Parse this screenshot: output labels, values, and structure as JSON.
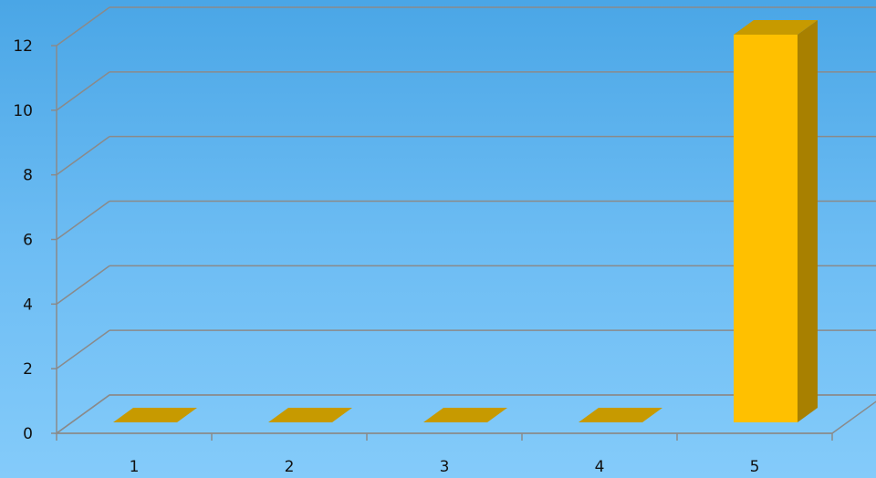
{
  "chart_data": {
    "type": "bar",
    "style": "3d-column",
    "categories": [
      "1",
      "2",
      "3",
      "4",
      "5"
    ],
    "values": [
      0,
      0,
      0,
      0,
      12
    ],
    "ylim": [
      0,
      12
    ],
    "yticks": [
      "0",
      "2",
      "4",
      "6",
      "8",
      "10",
      "12"
    ],
    "ytick_values": [
      0,
      2,
      4,
      6,
      8,
      10,
      12
    ],
    "grid": true,
    "legend": "none",
    "colors": {
      "bar_front": "#ffc000",
      "bar_top": "#c79a00",
      "bar_side": "#a88000",
      "gridline": "#8a8a8a",
      "background_top": "#4aa6e6",
      "background_bottom": "#84cbfa"
    }
  }
}
